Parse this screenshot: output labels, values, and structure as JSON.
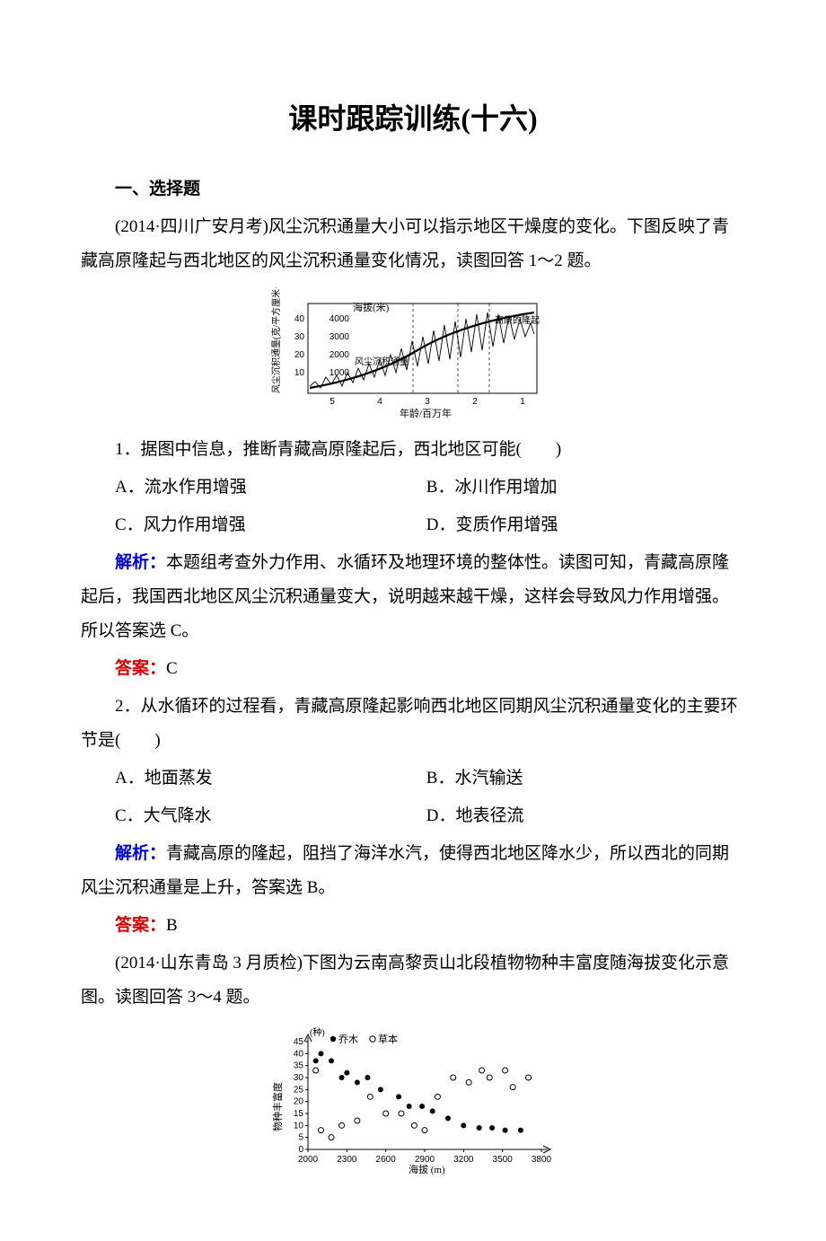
{
  "title": "课时跟踪训练(十六)",
  "section1": "一、选择题",
  "intro1": "(2014·四川广安月考)风尘沉积通量大小可以指示地区干燥度的变化。下图反映了青藏高原隆起与西北地区的风尘沉积通量变化情况，读图回答 1～2 题。",
  "chart1": {
    "y1_label": "风尘沉积通量(克/平方厘米·千年)",
    "y1_ticks": [
      "10",
      "20",
      "30",
      "40"
    ],
    "y2_label": "海拔(米)",
    "y2_ticks": [
      "1000",
      "2000",
      "3000",
      "4000"
    ],
    "x_label": "年龄/百万年",
    "x_ticks": [
      "5",
      "4",
      "3",
      "2",
      "1"
    ],
    "series1_label": "风尘沉积通量",
    "series2_label": "高原的隆起",
    "line_color": "#000000",
    "bg_color": "#ffffff"
  },
  "q1": {
    "stem": "1．据图中信息，推断青藏高原隆起后，西北地区可能(　　)",
    "A": "A．流水作用增强",
    "B": "B．冰川作用增加",
    "C": "C．风力作用增强",
    "D": "D．变质作用增强",
    "analysis": "本题组考查外力作用、水循环及地理环境的整体性。读图可知，青藏高原隆起后，我国西北地区风尘沉积通量变大，说明越来越干燥，这样会导致风力作用增强。所以答案选 C。",
    "answer": "C"
  },
  "q2": {
    "stem": "2．从水循环的过程看，青藏高原隆起影响西北地区同期风尘沉积通量变化的主要环节是(　　)",
    "A": "A．地面蒸发",
    "B": "B．水汽输送",
    "C": "C．大气降水",
    "D": "D．地表径流",
    "analysis": "青藏高原的隆起，阻挡了海洋水汽，使得西北地区降水少，所以西北的同期风尘沉积通量是上升，答案选 B。",
    "answer": "B"
  },
  "intro2": "(2014·山东青岛 3 月质检)下图为云南高黎贡山北段植物物种丰富度随海拔变化示意图。读图回答 3～4 题。",
  "chart2": {
    "y_label": "物种丰富度",
    "y_unit": "(种)",
    "y_ticks": [
      "0",
      "5",
      "10",
      "15",
      "20",
      "25",
      "30",
      "35",
      "40",
      "45"
    ],
    "x_label": "海拔 (m)",
    "x_ticks": [
      "2000",
      "2300",
      "2600",
      "2900",
      "3200",
      "3500",
      "3800"
    ],
    "legend_tree": "乔木",
    "legend_grass": "草本",
    "tree_color": "#000000",
    "grass_marker": "circle_open",
    "bg_color": "#ffffff",
    "tree_points": [
      [
        2060,
        37
      ],
      [
        2100,
        40
      ],
      [
        2180,
        37
      ],
      [
        2260,
        30
      ],
      [
        2300,
        32
      ],
      [
        2380,
        28
      ],
      [
        2460,
        30
      ],
      [
        2560,
        25
      ],
      [
        2700,
        22
      ],
      [
        2780,
        18
      ],
      [
        2880,
        18
      ],
      [
        2960,
        16
      ],
      [
        3080,
        13
      ],
      [
        3200,
        10
      ],
      [
        3320,
        9
      ],
      [
        3420,
        9
      ],
      [
        3520,
        8
      ],
      [
        3640,
        8
      ]
    ],
    "grass_points": [
      [
        2060,
        33
      ],
      [
        2100,
        8
      ],
      [
        2180,
        5
      ],
      [
        2260,
        10
      ],
      [
        2380,
        12
      ],
      [
        2480,
        22
      ],
      [
        2600,
        15
      ],
      [
        2720,
        15
      ],
      [
        2820,
        10
      ],
      [
        2900,
        8
      ],
      [
        3000,
        22
      ],
      [
        3120,
        30
      ],
      [
        3240,
        28
      ],
      [
        3340,
        33
      ],
      [
        3400,
        30
      ],
      [
        3520,
        33
      ],
      [
        3580,
        26
      ],
      [
        3700,
        30
      ]
    ]
  },
  "labels": {
    "analysis": "解析：",
    "answer": "答案："
  }
}
